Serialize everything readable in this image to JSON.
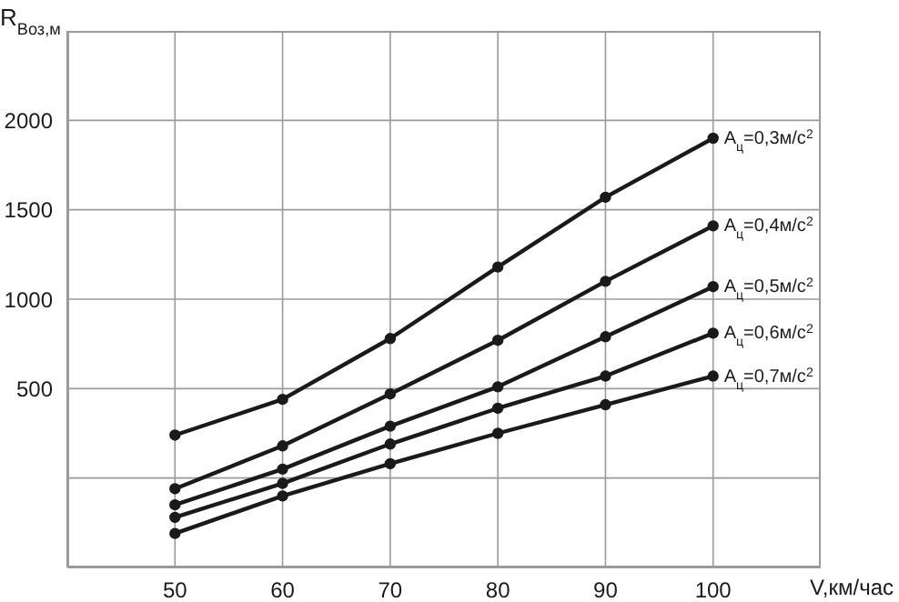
{
  "chart_data": {
    "type": "line",
    "xlabel": "V,км/час",
    "ylabel": "R$_{Воз,м}$",
    "x": [
      50,
      60,
      70,
      80,
      90,
      100
    ],
    "series": [
      {
        "name": "A$_{ц}$=0,3м/с$^{2}$",
        "color": "#1a1a1a",
        "values": [
          240,
          440,
          780,
          1180,
          1570,
          1900
        ]
      },
      {
        "name": "A$_{ц}$=0,4м/с$^{2}$",
        "color": "#1a1a1a",
        "values": [
          -60,
          180,
          470,
          770,
          1100,
          1410
        ]
      },
      {
        "name": "A$_{ц}$=0,5м/с$^{2}$",
        "color": "#1a1a1a",
        "values": [
          -150,
          50,
          290,
          510,
          790,
          1070
        ]
      },
      {
        "name": "A$_{ц}$=0,6м/с$^{2}$",
        "color": "#1a1a1a",
        "values": [
          -220,
          -30,
          190,
          390,
          570,
          810
        ]
      },
      {
        "name": "A$_{ц}$=0,7м/с$^{2}$",
        "color": "#1a1a1a",
        "values": [
          -310,
          -100,
          80,
          250,
          410,
          570
        ]
      }
    ],
    "xlim": [
      40,
      110
    ],
    "xticks": [
      50,
      60,
      70,
      80,
      90,
      100
    ],
    "ylim": [
      -500,
      2500
    ],
    "yticks": [
      {
        "value": 0,
        "label": null
      },
      500,
      1000,
      1500,
      2000
    ],
    "grid": true,
    "marker": "circle",
    "line_style": "solid"
  }
}
